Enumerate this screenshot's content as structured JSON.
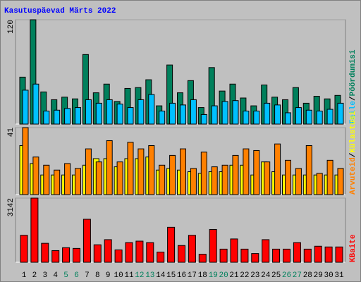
{
  "title": "Kasutuspäevad Märts 2022",
  "separator": "/",
  "chart_data": [
    {
      "type": "bar",
      "ylim": [
        0,
        120
      ],
      "yticks": [
        120
      ],
      "series": [
        {
          "name": "Pöördumisi",
          "color": "#00805c",
          "values": [
            54,
            120,
            37,
            28,
            31,
            29,
            80,
            36,
            46,
            26,
            41,
            42,
            51,
            21,
            68,
            36,
            50,
            19,
            65,
            38,
            46,
            30,
            21,
            45,
            31,
            28,
            42,
            24,
            32,
            29,
            33
          ]
        },
        {
          "name": "Faile",
          "color": "#00c0ff",
          "values": [
            39,
            46,
            15,
            16,
            18,
            19,
            28,
            24,
            28,
            23,
            19,
            28,
            34,
            15,
            24,
            22,
            28,
            11,
            21,
            26,
            27,
            15,
            15,
            24,
            22,
            13,
            19,
            16,
            15,
            17,
            24
          ]
        }
      ]
    },
    {
      "type": "bar",
      "ylim": [
        0,
        41
      ],
      "yticks": [
        41
      ],
      "series": [
        {
          "name": "Külastusi",
          "color": "#ffff00",
          "values": [
            30,
            19,
            12,
            12,
            12,
            12,
            18,
            22,
            22,
            17,
            22,
            22,
            23,
            15,
            16,
            15,
            14,
            13,
            14,
            14,
            18,
            18,
            12,
            20,
            14,
            12,
            12,
            12,
            12,
            12,
            12
          ]
        },
        {
          "name": "Arvuteid",
          "color": "#ff8000",
          "values": [
            41,
            23,
            18,
            15,
            19,
            16,
            28,
            20,
            33,
            20,
            32,
            28,
            30,
            18,
            24,
            28,
            16,
            26,
            17,
            18,
            24,
            28,
            27,
            20,
            31,
            21,
            16,
            30,
            13,
            21,
            16
          ]
        }
      ]
    },
    {
      "type": "bar",
      "ylim": [
        0,
        3142
      ],
      "yticks": [
        3142
      ],
      "categories": [
        "1",
        "2",
        "3",
        "4",
        "5",
        "6",
        "7",
        "8",
        "9",
        "10",
        "11",
        "12",
        "13",
        "14",
        "15",
        "16",
        "17",
        "18",
        "19",
        "20",
        "21",
        "22",
        "23",
        "24",
        "25",
        "26",
        "27",
        "28",
        "29",
        "30",
        "31"
      ],
      "category_colors": [
        "#000000",
        "#000000",
        "#000000",
        "#000000",
        "#00805c",
        "#00805c",
        "#000000",
        "#000000",
        "#000000",
        "#000000",
        "#000000",
        "#00805c",
        "#00805c",
        "#000000",
        "#000000",
        "#000000",
        "#000000",
        "#000000",
        "#00805c",
        "#00805c",
        "#000000",
        "#000000",
        "#000000",
        "#000000",
        "#000000",
        "#00805c",
        "#00805c",
        "#000000",
        "#000000",
        "#000000",
        "#000000"
      ],
      "series": [
        {
          "name": "KBaite",
          "color": "#ff0000",
          "values": [
            1321,
            3142,
            928,
            571,
            714,
            678,
            2106,
            857,
            1107,
            607,
            964,
            1035,
            964,
            500,
            1714,
            821,
            1321,
            393,
            1607,
            643,
            1142,
            643,
            428,
            1107,
            643,
            643,
            964,
            643,
            785,
            750,
            750
          ]
        }
      ]
    }
  ]
}
